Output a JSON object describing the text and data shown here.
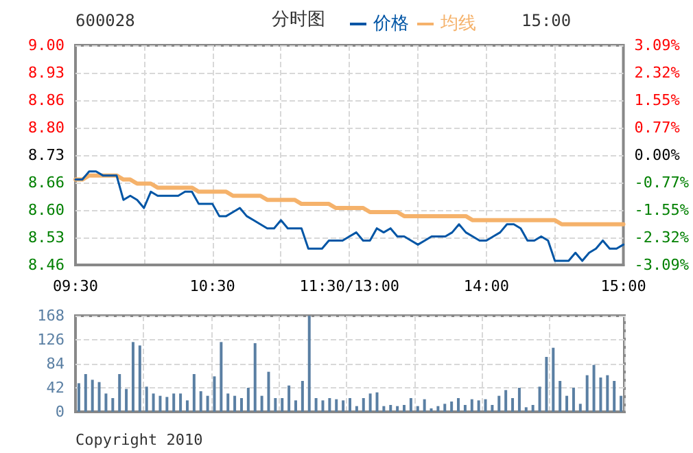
{
  "chart_data": [
    {
      "type": "line",
      "title": "600028",
      "subtitle": "分时图",
      "annotations": [
        "15:00"
      ],
      "categories": [
        "09:30",
        null,
        null,
        null,
        null,
        null,
        null,
        null,
        null,
        null,
        null,
        null,
        null,
        null,
        null,
        null,
        null,
        null,
        null,
        null,
        "10:30",
        null,
        null,
        null,
        null,
        null,
        null,
        null,
        null,
        null,
        null,
        null,
        null,
        null,
        null,
        null,
        null,
        null,
        null,
        null,
        "11:30/13:00",
        null,
        null,
        null,
        null,
        null,
        null,
        null,
        null,
        null,
        null,
        null,
        null,
        null,
        null,
        null,
        null,
        null,
        null,
        null,
        "14:00",
        null,
        null,
        null,
        null,
        null,
        null,
        null,
        null,
        null,
        null,
        null,
        null,
        null,
        null,
        null,
        null,
        null,
        null,
        null,
        "15:00"
      ],
      "series": [
        {
          "name": "价格",
          "color": "#0055a5",
          "values": [
            8.67,
            8.67,
            8.69,
            8.69,
            8.68,
            8.68,
            8.68,
            8.62,
            8.63,
            8.62,
            8.6,
            8.64,
            8.63,
            8.63,
            8.63,
            8.63,
            8.64,
            8.64,
            8.61,
            8.61,
            8.61,
            8.58,
            8.58,
            8.59,
            8.6,
            8.58,
            8.57,
            8.56,
            8.55,
            8.55,
            8.57,
            8.55,
            8.55,
            8.55,
            8.5,
            8.5,
            8.5,
            8.52,
            8.52,
            8.52,
            8.53,
            8.54,
            8.52,
            8.52,
            8.55,
            8.54,
            8.55,
            8.53,
            8.53,
            8.52,
            8.51,
            8.52,
            8.53,
            8.53,
            8.53,
            8.54,
            8.56,
            8.54,
            8.53,
            8.52,
            8.52,
            8.53,
            8.54,
            8.56,
            8.56,
            8.55,
            8.52,
            8.52,
            8.53,
            8.52,
            8.47,
            8.47,
            8.47,
            8.49,
            8.47,
            8.49,
            8.5,
            8.52,
            8.5,
            8.5,
            8.51
          ]
        },
        {
          "name": "均线",
          "color": "#f5b26b",
          "values": [
            8.67,
            8.67,
            8.68,
            8.68,
            8.68,
            8.68,
            8.68,
            8.67,
            8.67,
            8.66,
            8.66,
            8.66,
            8.65,
            8.65,
            8.65,
            8.65,
            8.65,
            8.65,
            8.64,
            8.64,
            8.64,
            8.64,
            8.64,
            8.63,
            8.63,
            8.63,
            8.63,
            8.63,
            8.62,
            8.62,
            8.62,
            8.62,
            8.62,
            8.61,
            8.61,
            8.61,
            8.61,
            8.61,
            8.6,
            8.6,
            8.6,
            8.6,
            8.6,
            8.59,
            8.59,
            8.59,
            8.59,
            8.59,
            8.58,
            8.58,
            8.58,
            8.58,
            8.58,
            8.58,
            8.58,
            8.58,
            8.58,
            8.58,
            8.57,
            8.57,
            8.57,
            8.57,
            8.57,
            8.57,
            8.57,
            8.57,
            8.57,
            8.57,
            8.57,
            8.57,
            8.57,
            8.56,
            8.56,
            8.56,
            8.56,
            8.56,
            8.56,
            8.56,
            8.56,
            8.56,
            8.56
          ]
        }
      ],
      "ylim": [
        8.46,
        9.0
      ],
      "yticks": [
        8.46,
        {
          "value": 8.5275,
          "label": "8.53"
        },
        {
          "value": 8.595,
          "label": "8.60"
        },
        {
          "value": 8.6625,
          "label": "8.66"
        },
        8.73,
        {
          "value": 8.7975,
          "label": "8.80"
        },
        {
          "value": 8.865,
          "label": "8.86"
        },
        {
          "value": 8.9325,
          "label": "8.93"
        },
        {
          "value": 9.0,
          "label": "9.00"
        }
      ],
      "y2lim": [
        -3.09,
        3.09
      ],
      "y2ticks": [
        {
          "value": 3.09,
          "label": "3.09%"
        },
        {
          "value": 2.32,
          "label": "2.32%"
        },
        {
          "value": 1.55,
          "label": "1.55%"
        },
        {
          "value": 0.77,
          "label": "0.77%"
        },
        {
          "value": 0,
          "label": "0.00%"
        },
        {
          "value": -0.77,
          "label": "-0.77%"
        },
        {
          "value": -1.55,
          "label": "-1.55%"
        },
        {
          "value": -2.32,
          "label": "-2.32%"
        },
        {
          "value": -3.09,
          "label": "-3.09%"
        }
      ],
      "grid": true,
      "legend": "top",
      "marker": "none",
      "line_style": "solid"
    },
    {
      "type": "bar",
      "annotations": [
        "Copyright 2010"
      ],
      "categories": [
        null,
        null,
        null,
        null,
        null,
        null,
        null,
        null,
        null,
        null,
        null,
        null,
        null,
        null,
        null,
        null,
        null,
        null,
        null,
        null,
        null,
        null,
        null,
        null,
        null,
        null,
        null,
        null,
        null,
        null,
        null,
        null,
        null,
        null,
        null,
        null,
        null,
        null,
        null,
        null,
        null,
        null,
        null,
        null,
        null,
        null,
        null,
        null,
        null,
        null,
        null,
        null,
        null,
        null,
        null,
        null,
        null,
        null,
        null,
        null,
        null,
        null,
        null,
        null,
        null,
        null,
        null,
        null,
        null,
        null,
        null,
        null,
        null,
        null,
        null,
        null,
        null,
        null,
        null,
        null,
        null
      ],
      "color": "#5a7fa3",
      "values": [
        50,
        66,
        56,
        52,
        32,
        24,
        66,
        40,
        122,
        116,
        44,
        32,
        28,
        26,
        32,
        32,
        20,
        66,
        36,
        28,
        62,
        122,
        32,
        28,
        24,
        42,
        120,
        28,
        70,
        24,
        24,
        46,
        20,
        54,
        168,
        24,
        20,
        24,
        22,
        20,
        24,
        10,
        24,
        32,
        34,
        10,
        12,
        10,
        12,
        24,
        10,
        22,
        6,
        10,
        14,
        18,
        24,
        12,
        22,
        20,
        22,
        12,
        28,
        38,
        24,
        42,
        8,
        12,
        44,
        96,
        112,
        54,
        28,
        42,
        14,
        64,
        82,
        60,
        64,
        54,
        28
      ],
      "ylim": [
        0,
        168
      ],
      "yticks": [
        0,
        42,
        84,
        126,
        168
      ],
      "grid": true,
      "tick_labels": "y"
    }
  ]
}
